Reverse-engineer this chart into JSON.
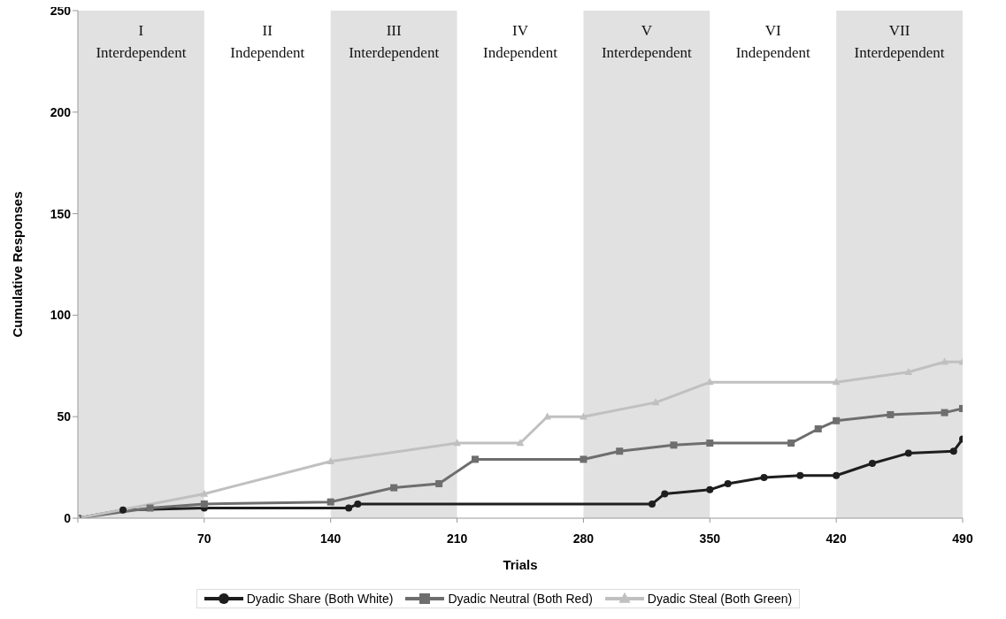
{
  "chart_data": {
    "type": "line",
    "xlabel": "Trials",
    "ylabel": "Cumulative Responses",
    "xlim": [
      0,
      490
    ],
    "xticks": [
      {
        "value": 0,
        "label": null
      },
      70,
      140,
      210,
      280,
      350,
      420,
      490
    ],
    "ylim": [
      0,
      250
    ],
    "yticks": [
      0,
      50,
      100,
      150,
      200,
      250
    ],
    "grid": false,
    "legend": "bottom",
    "line_style": "solid",
    "bands": [
      {
        "axis": "x",
        "from": 0,
        "to": 70,
        "label": "I Interdependent",
        "color": "#e1e1e1"
      },
      {
        "axis": "x",
        "from": 140,
        "to": 210,
        "label": "III Interdependent",
        "color": "#e1e1e1"
      },
      {
        "axis": "x",
        "from": 280,
        "to": 350,
        "label": "V Interdependent",
        "color": "#e1e1e1"
      },
      {
        "axis": "x",
        "from": 420,
        "to": 490,
        "label": "VII Interdependent",
        "color": "#e1e1e1"
      }
    ],
    "annotations": [
      "II Independent",
      "IV Independent",
      "VI Independent"
    ],
    "series": [
      {
        "name": "Dyadic Share (Both White)",
        "color": "#1e1e1e",
        "marker": "circle",
        "x": [
          0,
          25,
          70,
          150,
          155,
          318,
          325,
          350,
          360,
          380,
          400,
          420,
          440,
          460,
          485,
          490
        ],
        "values": [
          0,
          4,
          5,
          5,
          7,
          7,
          12,
          14,
          17,
          20,
          21,
          21,
          27,
          32,
          33,
          39
        ]
      },
      {
        "name": "Dyadic Neutral (Both Red)",
        "color": "#6e6e6e",
        "marker": "square",
        "x": [
          0,
          40,
          70,
          140,
          175,
          200,
          220,
          280,
          300,
          330,
          350,
          395,
          410,
          420,
          450,
          480,
          490
        ],
        "values": [
          0,
          5,
          7,
          8,
          15,
          17,
          29,
          29,
          33,
          36,
          37,
          37,
          44,
          48,
          51,
          52,
          54
        ]
      },
      {
        "name": "Dyadic Steal (Both Green)",
        "color": "#c0c0c0",
        "marker": "triangle",
        "x": [
          0,
          70,
          140,
          210,
          245,
          260,
          280,
          320,
          350,
          420,
          460,
          480,
          490
        ],
        "values": [
          0,
          12,
          28,
          37,
          37,
          50,
          50,
          57,
          67,
          67,
          72,
          77,
          77
        ]
      }
    ]
  }
}
